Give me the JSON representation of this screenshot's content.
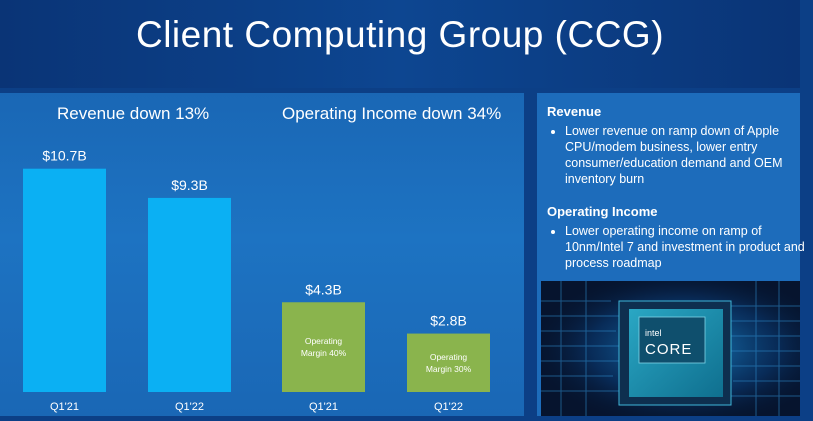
{
  "title": "Client Computing Group (CCG)",
  "colors": {
    "revenue_bar": "#0bb0f3",
    "income_bar": "#8ab44d",
    "panel": "#1a6ab8",
    "background": "#0c3f86"
  },
  "chart_data": [
    {
      "type": "bar",
      "title": "Revenue down 13%",
      "categories": [
        "Q1'21",
        "Q1'22"
      ],
      "values": [
        10.7,
        9.3
      ],
      "value_labels": [
        "$10.7B",
        "$9.3B"
      ],
      "unit": "$B",
      "ylim": [
        0,
        11.5
      ]
    },
    {
      "type": "bar",
      "title": "Operating Income down 34%",
      "categories": [
        "Q1'21",
        "Q1'22"
      ],
      "values": [
        4.3,
        2.8
      ],
      "value_labels": [
        "$4.3B",
        "$2.8B"
      ],
      "unit": "$B",
      "ylim": [
        0,
        11.5
      ],
      "bar_notes": [
        [
          "Operating",
          "Margin 40%"
        ],
        [
          "Operating",
          "Margin 30%"
        ]
      ]
    }
  ],
  "sidebar": {
    "sections": [
      {
        "heading": "Revenue",
        "bullets": [
          "Lower revenue on ramp down of Apple CPU/modem business, lower entry consumer/education demand and OEM inventory burn"
        ]
      },
      {
        "heading": "Operating Income",
        "bullets": [
          "Lower operating income on ramp of 10nm/Intel 7 and investment in product and process roadmap"
        ]
      }
    ]
  },
  "chip": {
    "brand": "intel",
    "product": "CORE",
    "icon": "intel-core-chip-icon"
  }
}
